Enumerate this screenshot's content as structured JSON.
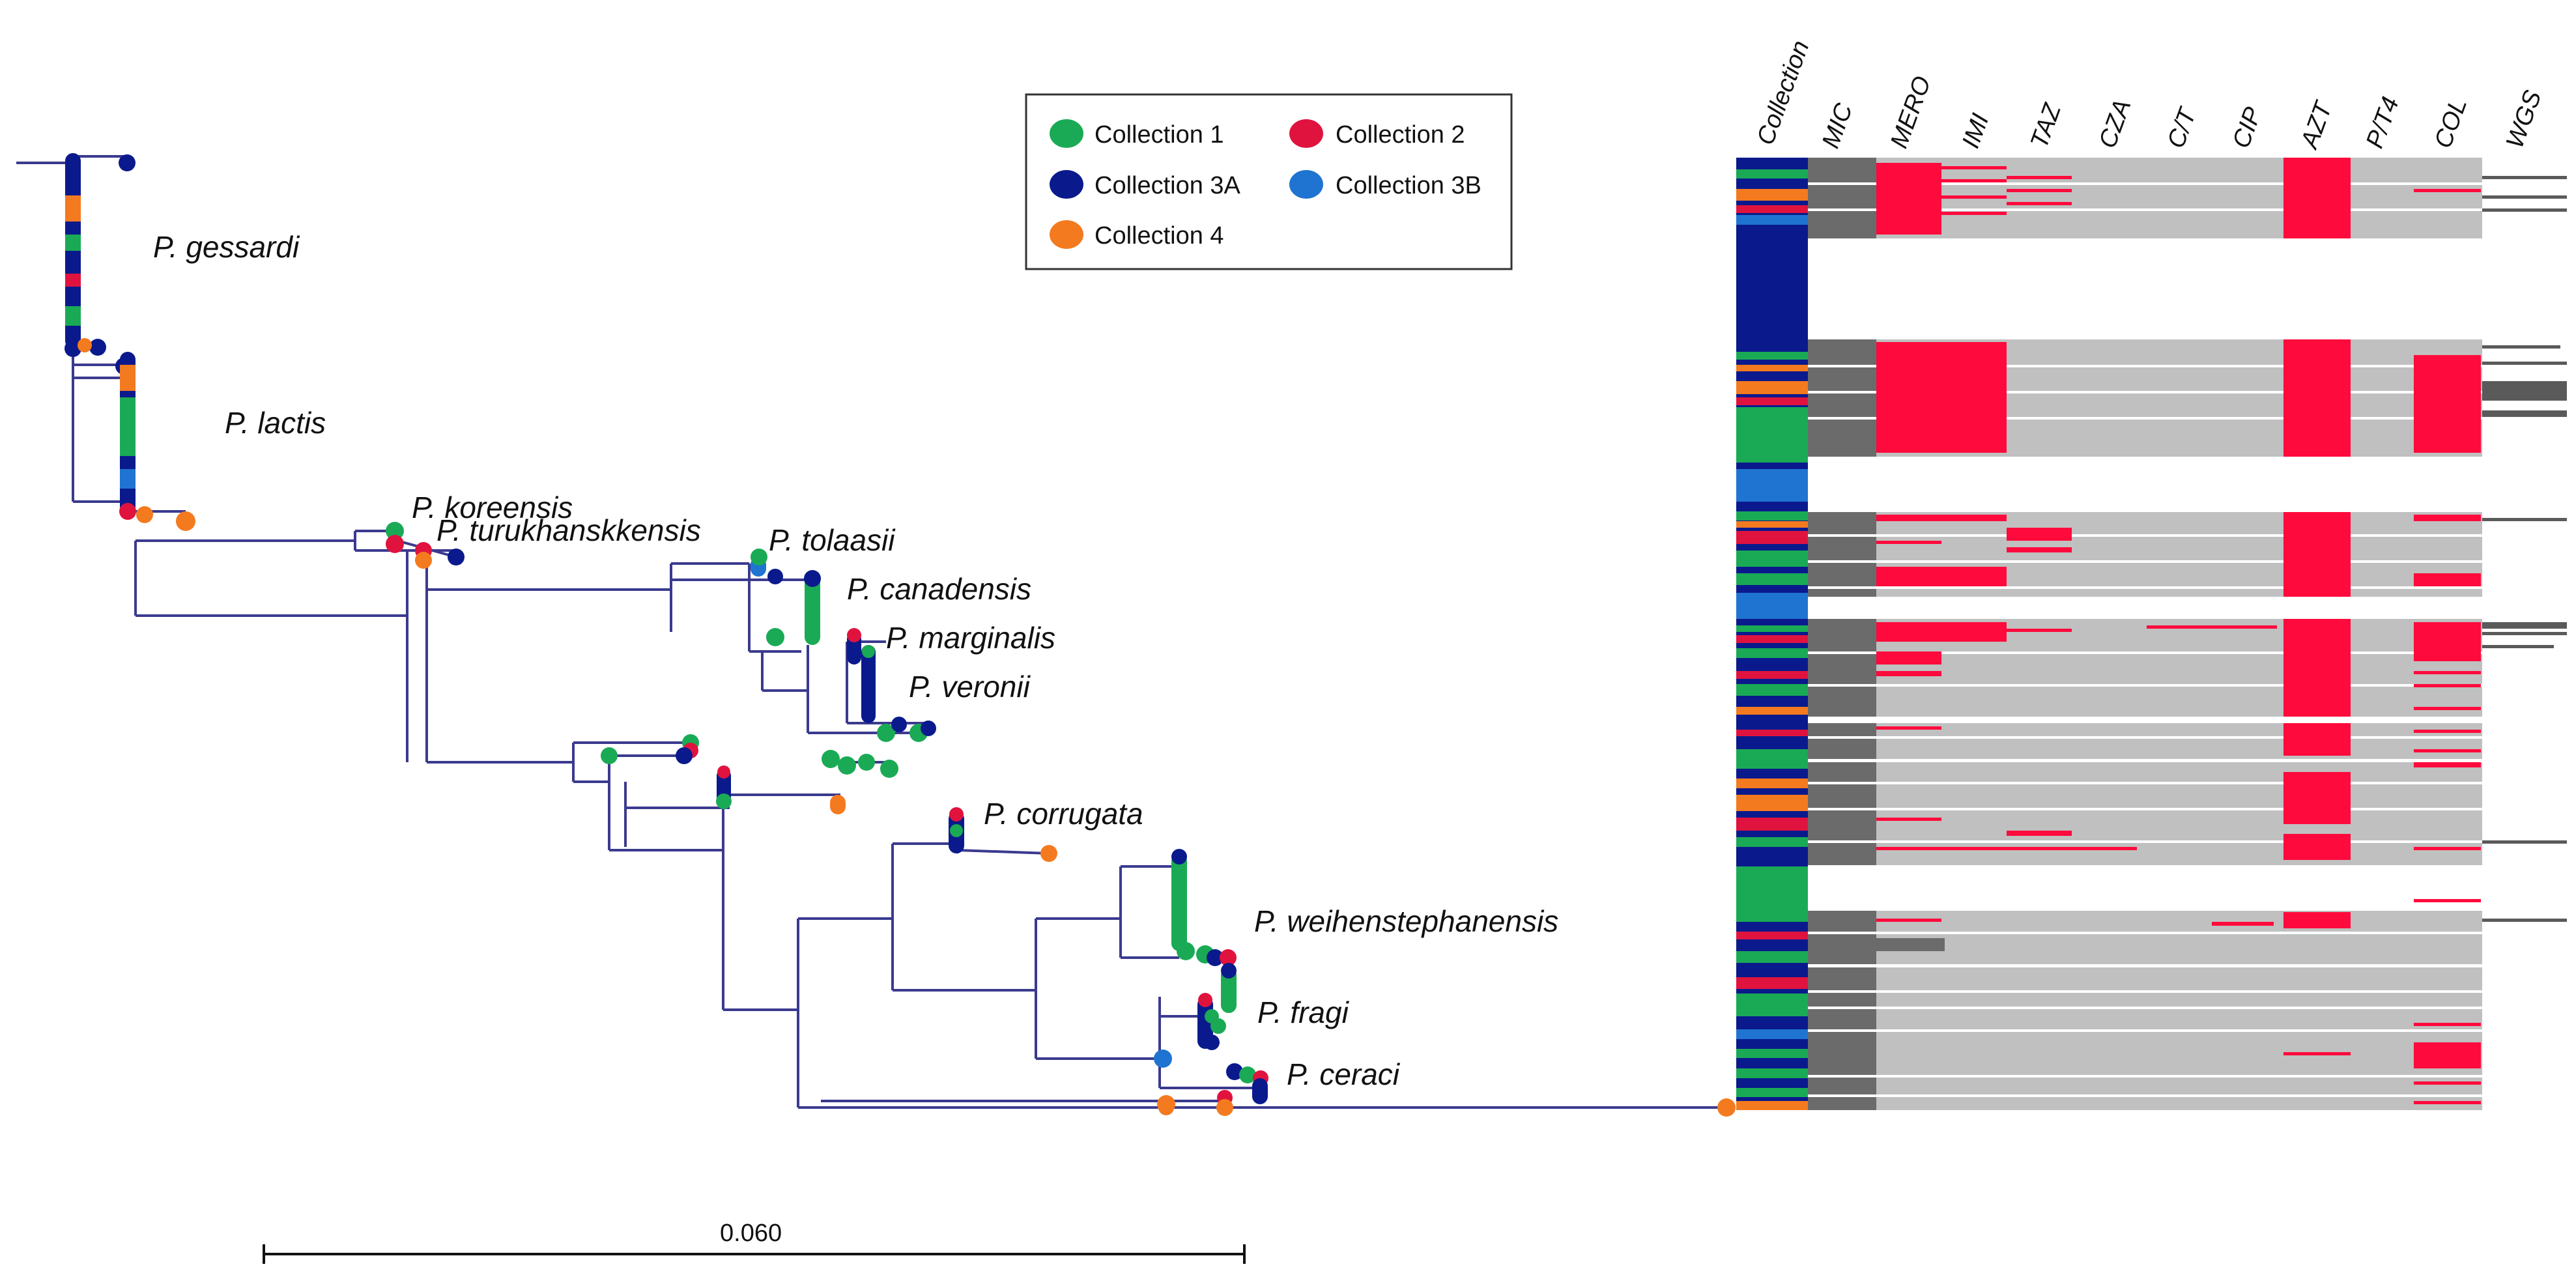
{
  "legend": {
    "items": [
      {
        "label": "Collection 1",
        "color": "#1aaa55"
      },
      {
        "label": "Collection 2",
        "color": "#e0133f"
      },
      {
        "label": "Collection 3A",
        "color": "#0a1a8c"
      },
      {
        "label": "Collection 3B",
        "color": "#1f74d1"
      },
      {
        "label": "Collection 4",
        "color": "#f47a20"
      }
    ]
  },
  "species": [
    "P. gessardi",
    "P. lactis",
    "P. koreensis",
    "P. turukhanskkensis",
    "P. tolaasii",
    "P. canadensis",
    "P. marginalis",
    "P. veronii",
    "P. corrugata",
    "P. weihenstephanensis",
    "P. fragi",
    "P. ceraci"
  ],
  "heatmap": {
    "collection_header": "Collection",
    "columns": [
      "MIC",
      "MERO",
      "IMI",
      "TAZ",
      "CZA",
      "C/T",
      "CIP",
      "AZT",
      "P/T4",
      "COL",
      "WGS"
    ],
    "colors": {
      "resistant": "#ff0a3c",
      "susceptible": "#c0c0c0",
      "mic": "#6b6b6b",
      "wgs": "#5a5a5a"
    }
  },
  "scale_bar": {
    "label": "0.060"
  }
}
